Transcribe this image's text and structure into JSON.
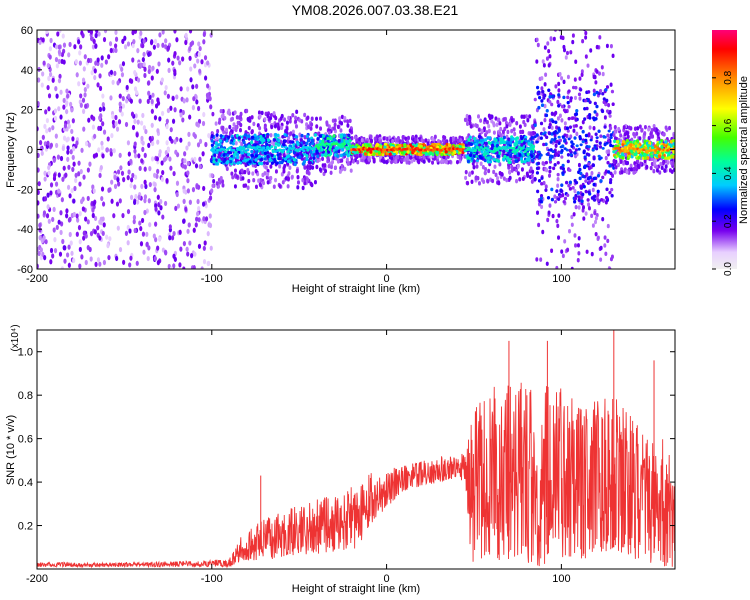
{
  "title": "YM08.2026.007.03.38.E21",
  "chart_data": [
    {
      "type": "heatmap",
      "xlabel": "Height of straight line (km)",
      "ylabel": "Frequency (Hz)",
      "xlim": [
        -200,
        165
      ],
      "ylim": [
        -60,
        60
      ],
      "xticks": [
        -200,
        -100,
        0,
        100
      ],
      "xtick_labels": [
        "-200",
        "-100",
        "0",
        "100"
      ],
      "yticks": [
        -60,
        -40,
        -20,
        0,
        20,
        40,
        60
      ],
      "ytick_labels": [
        "-60",
        "-40",
        "-20",
        "0",
        "20",
        "40",
        "60"
      ],
      "colorbar": {
        "label": "Normalized spectral amplitude",
        "range": [
          0,
          1
        ],
        "ticks": [
          0.0,
          0.2,
          0.4,
          0.6,
          0.8
        ],
        "tick_labels": [
          "0.0",
          "0.2",
          "0.4",
          "0.6",
          "0.8"
        ]
      },
      "regions": [
        {
          "x_start": -200,
          "x_end": -100,
          "freq_low": -60,
          "freq_high": 60,
          "amplitude": 0.1,
          "description": "broadband noise"
        },
        {
          "x_start": -100,
          "x_end": -40,
          "freq_low": -6,
          "freq_high": 6,
          "amplitude": 0.4
        },
        {
          "x_start": -40,
          "x_end": -20,
          "freq_low": -2,
          "freq_high": 6,
          "amplitude": 0.5
        },
        {
          "x_start": -20,
          "x_end": 45,
          "freq_low": -1,
          "freq_high": 1,
          "amplitude": 0.95
        },
        {
          "x_start": 45,
          "x_end": 85,
          "freq_low": -5,
          "freq_high": 5,
          "amplitude": 0.45
        },
        {
          "x_start": 85,
          "x_end": 130,
          "freq_low": -25,
          "freq_high": 30,
          "amplitude": 0.3
        },
        {
          "x_start": 130,
          "x_end": 165,
          "freq_low": -3,
          "freq_high": 3,
          "amplitude": 0.85
        }
      ]
    },
    {
      "type": "line",
      "xlabel": "Height of straight line (km)",
      "ylabel": "SNR (10 * v/v)",
      "y_multiplier": "(x10⁴)",
      "xlim": [
        -200,
        165
      ],
      "ylim": [
        0,
        1.1
      ],
      "xticks": [
        -200,
        -100,
        0,
        100
      ],
      "xtick_labels": [
        "-200",
        "-100",
        "0",
        "100"
      ],
      "yticks": [
        0.2,
        0.4,
        0.6,
        0.8,
        1.0
      ],
      "ytick_labels": [
        "0.2",
        "0.4",
        "0.6",
        "0.8",
        "1.0"
      ],
      "series": [
        {
          "name": "SNR",
          "color": "#ee3333",
          "envelope": {
            "x": [
              -200,
              -150,
              -100,
              -90,
              -85,
              -80,
              -70,
              -60,
              -50,
              -40,
              -30,
              -20,
              -15,
              -10,
              0,
              10,
              20,
              30,
              40,
              45,
              48,
              55,
              60,
              70,
              80,
              90,
              100,
              110,
              120,
              130,
              140,
              150,
              160,
              165
            ],
            "low": [
              0.01,
              0.01,
              0.01,
              0.01,
              0.03,
              0.04,
              0.04,
              0.05,
              0.06,
              0.07,
              0.08,
              0.08,
              0.12,
              0.2,
              0.28,
              0.36,
              0.38,
              0.4,
              0.42,
              0.4,
              0.01,
              0.05,
              0.05,
              0.03,
              0.02,
              0.01,
              0.05,
              0.05,
              0.03,
              0.05,
              0.05,
              0.03,
              0.01,
              0.01
            ],
            "high": [
              0.03,
              0.03,
              0.04,
              0.05,
              0.13,
              0.18,
              0.23,
              0.27,
              0.3,
              0.32,
              0.35,
              0.38,
              0.42,
              0.44,
              0.46,
              0.48,
              0.5,
              0.52,
              0.52,
              0.54,
              0.7,
              0.8,
              0.92,
              0.9,
              0.85,
              0.85,
              0.85,
              0.8,
              0.8,
              0.8,
              0.72,
              0.6,
              0.6,
              0.5
            ],
            "peaks": [
              {
                "x": -72,
                "y": 0.43
              },
              {
                "x": 70,
                "y": 1.05
              },
              {
                "x": 92,
                "y": 1.05
              },
              {
                "x": 130,
                "y": 1.1
              },
              {
                "x": 153,
                "y": 0.96
              }
            ]
          }
        }
      ]
    }
  ]
}
